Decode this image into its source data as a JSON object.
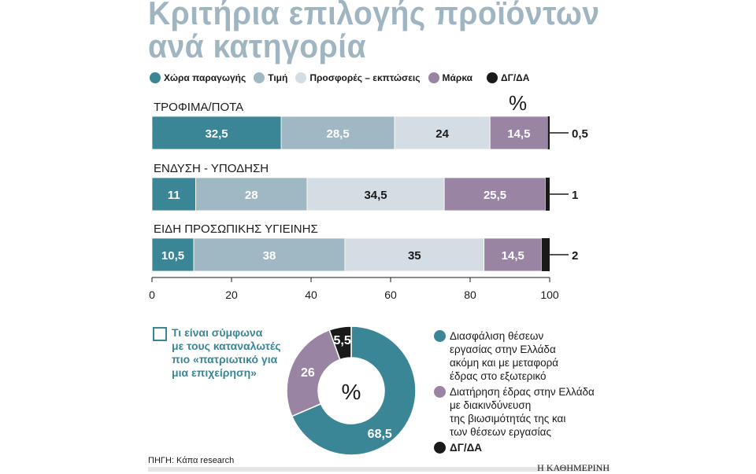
{
  "title_line1": "Κριτήρια επιλογής προϊόντων",
  "title_line2": "ανά κατηγορία",
  "unit": "%",
  "colors": {
    "origin": "#3a8596",
    "price": "#a0b8c4",
    "offers": "#d4dde3",
    "brand": "#9a84a3",
    "dk": "#1a1a1a",
    "title": "#9fb5c1"
  },
  "chart_data": [
    {
      "type": "bar",
      "orientation": "horizontal-stacked",
      "categories": [
        "ΤΡΟΦΙΜΑ/ΠΟΤΑ",
        "ΕΝΔΥΣΗ - ΥΠΟΔΗΣΗ",
        "ΕΙΔΗ ΠΡΟΣΩΠΙΚΗΣ ΥΓΙΕΙΝΗΣ"
      ],
      "series": [
        {
          "name": "Χώρα παραγωγής",
          "values": [
            32.5,
            11,
            10.5
          ],
          "labels": [
            "32,5",
            "11",
            "10,5"
          ]
        },
        {
          "name": "Τιμή",
          "values": [
            28.5,
            28,
            38
          ],
          "labels": [
            "28,5",
            "28",
            "38"
          ]
        },
        {
          "name": "Προσφορές – εκπτώσεις",
          "values": [
            24,
            34.5,
            35
          ],
          "labels": [
            "24",
            "34,5",
            "35"
          ]
        },
        {
          "name": "Μάρκα",
          "values": [
            14.5,
            25.5,
            14.5
          ],
          "labels": [
            "14,5",
            "25,5",
            "14,5"
          ]
        },
        {
          "name": "ΔΓ/ΔΑ",
          "values": [
            0.5,
            1,
            2
          ],
          "labels": [
            "0,5",
            "1",
            "2"
          ]
        }
      ],
      "xlim": [
        0,
        100
      ],
      "xticks": [
        "0",
        "20",
        "40",
        "60",
        "80",
        "100"
      ],
      "legend": "top",
      "grid": false
    },
    {
      "type": "pie",
      "donut": true,
      "title": "Τι είναι σύμφωνα με τους καταναλωτές πιο «πατριωτικό για μια επιχείρηση»",
      "center_label": "%",
      "slices": [
        {
          "name": "Διασφάλιση θέσεων εργασίας στην Ελλάδα ακόμη και με μεταφορά έδρας στο εξωτερικό",
          "value": 68.5,
          "label": "68,5"
        },
        {
          "name": "Διατήρηση έδρας στην Ελλάδα με διακινδύνευση της βιωσιμότητάς της και των θέσεων εργασίας",
          "value": 26,
          "label": "26"
        },
        {
          "name": "ΔΓ/ΔΑ",
          "value": 5.5,
          "label": "5,5"
        }
      ]
    }
  ],
  "donut_question": [
    "Τι είναι σύμφωνα",
    "με τους καταναλωτές",
    "πιο «πατριωτικό για",
    "μια επιχείρηση»"
  ],
  "donut_legend": [
    [
      "Διασφάλιση θέσεων",
      "εργασίας στην Ελλάδα",
      "ακόμη και με μεταφορά",
      "έδρας στο εξωτερικό"
    ],
    [
      "Διατήρηση έδρας στην Ελλάδα",
      "με διακινδύνευση",
      "της βιωσιμότητάς της και",
      "των θέσεων εργασίας"
    ],
    [
      "ΔΓ/ΔΑ"
    ]
  ],
  "source": "ΠΗΓΗ: Κάπα research",
  "publisher": "Η ΚΑΘΗΜΕΡΙΝΗ"
}
